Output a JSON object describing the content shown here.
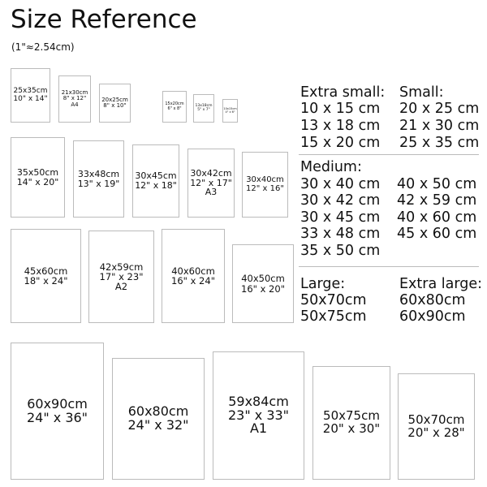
{
  "title": "Size Reference",
  "subtitle": "(1\"≈2.54cm)",
  "boxes": [
    {
      "cm": "25x35cm",
      "in": "10\" x 14\"",
      "extra": ""
    },
    {
      "cm": "21x30cm",
      "in": "8\" x 12\"",
      "extra": "A4"
    },
    {
      "cm": "20x25cm",
      "in": "8\" x 10\"",
      "extra": ""
    },
    {
      "cm": "15x20cm",
      "in": "6\" x 8\"",
      "extra": ""
    },
    {
      "cm": "13x18cm",
      "in": "5\" x 7\"",
      "extra": ""
    },
    {
      "cm": "10x15cm",
      "in": "4\" x 6\"",
      "extra": ""
    },
    {
      "cm": "35x50cm",
      "in": "14\" x 20\"",
      "extra": ""
    },
    {
      "cm": "33x48cm",
      "in": "13\" x 19\"",
      "extra": ""
    },
    {
      "cm": "30x45cm",
      "in": "12\" x 18\"",
      "extra": ""
    },
    {
      "cm": "30x42cm",
      "in": "12\" x 17\"",
      "extra": "A3"
    },
    {
      "cm": "30x40cm",
      "in": "12\" x 16\"",
      "extra": ""
    },
    {
      "cm": "45x60cm",
      "in": "18\" x 24\"",
      "extra": ""
    },
    {
      "cm": "42x59cm",
      "in": "17\" x 23\"",
      "extra": "A2"
    },
    {
      "cm": "40x60cm",
      "in": "16\" x 24\"",
      "extra": ""
    },
    {
      "cm": "40x50cm",
      "in": "16\" x 20\"",
      "extra": ""
    },
    {
      "cm": "60x90cm",
      "in": "24\" x 36\"",
      "extra": ""
    },
    {
      "cm": "60x80cm",
      "in": "24\" x 32\"",
      "extra": ""
    },
    {
      "cm": "59x84cm",
      "in": "23\" x 33\"",
      "extra": "A1"
    },
    {
      "cm": "50x75cm",
      "in": "20\" x 30\"",
      "extra": ""
    },
    {
      "cm": "50x70cm",
      "in": "20\" x 28\"",
      "extra": ""
    }
  ],
  "legend": {
    "extra_small": {
      "label": "Extra small:",
      "items": [
        "10 x 15 cm",
        "13 x 18 cm",
        "15 x 20 cm"
      ]
    },
    "small": {
      "label": "Small:",
      "items": [
        "20 x 25 cm",
        "21 x 30 cm",
        "25 x 35 cm"
      ]
    },
    "medium": {
      "label": "Medium:",
      "col1": [
        "30 x 40 cm",
        "30 x 42 cm",
        "30 x 45 cm",
        "33 x 48 cm",
        "35 x 50 cm"
      ],
      "col2": [
        "40 x 50 cm",
        "42 x 59 cm",
        "40 x 60 cm",
        "45 x 60 cm"
      ]
    },
    "large": {
      "label": "Large:",
      "items": [
        "50x70cm",
        "50x75cm"
      ]
    },
    "extra_large": {
      "label": "Extra large:",
      "items": [
        "60x80cm",
        "60x90cm"
      ]
    }
  }
}
